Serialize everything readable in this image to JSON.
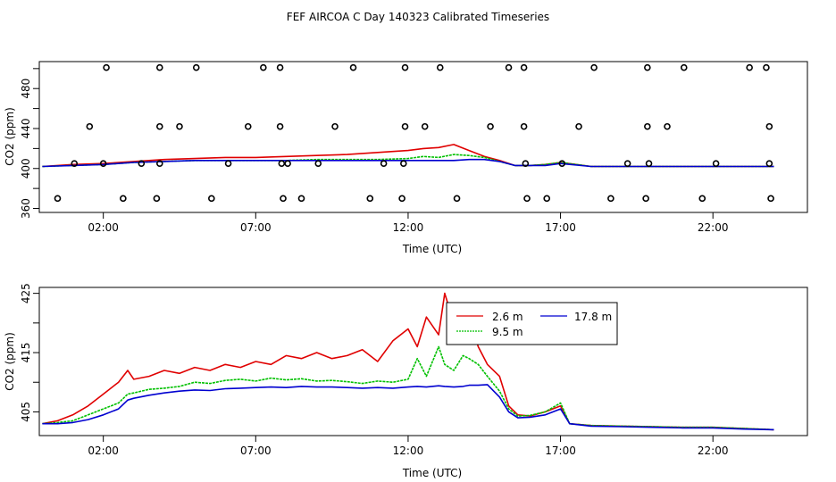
{
  "title": "FEF AIRCOA C  Day 140323  Calibrated Timeseries",
  "colors": {
    "s26": "#e00000",
    "s95": "#00c000",
    "s178": "#0000d0",
    "axis": "#000000"
  },
  "chart_data": [
    {
      "type": "line",
      "panel": "top",
      "xlabel": "Time (UTC)",
      "ylabel": "CO2 (ppm)",
      "xlim": [
        -0.1,
        25.1
      ],
      "ylim": [
        356,
        507
      ],
      "xticks": [
        2,
        7,
        12,
        17,
        22
      ],
      "xtick_labels": [
        "02:00",
        "07:00",
        "12:00",
        "17:00",
        "22:00"
      ],
      "yticks": [
        360,
        380,
        400,
        420,
        440,
        460,
        480,
        500
      ],
      "ytick_labels": [
        "360",
        "",
        "400",
        "",
        "440",
        "",
        "480",
        ""
      ],
      "series": [
        {
          "name": "2.6 m",
          "color": "#e00000",
          "x": [
            0,
            1,
            2,
            3,
            4,
            5,
            6,
            7,
            8,
            9,
            10,
            11,
            12,
            12.5,
            13,
            13.5,
            14,
            14.5,
            15,
            15.5,
            16,
            16.5,
            17,
            18,
            20,
            22,
            24
          ],
          "y": [
            402,
            404,
            405,
            407,
            409,
            410,
            411,
            411,
            412,
            413,
            414,
            416,
            418,
            420,
            421,
            424,
            418,
            412,
            408,
            403,
            403,
            404,
            406,
            402,
            402,
            402,
            402
          ]
        },
        {
          "name": "9.5 m",
          "color": "#00c000",
          "x": [
            0,
            1,
            2,
            3,
            4,
            5,
            6,
            7,
            8,
            9,
            10,
            11,
            12,
            12.5,
            13,
            13.5,
            14,
            14.5,
            15,
            15.5,
            16,
            16.5,
            17,
            18,
            20,
            22,
            24
          ],
          "y": [
            402,
            403,
            404,
            406,
            407,
            408,
            408,
            408,
            408,
            409,
            409,
            409,
            410,
            412,
            411,
            414,
            413,
            411,
            407,
            403,
            403,
            404,
            406,
            402,
            402,
            402,
            402
          ]
        },
        {
          "name": "17.8 m",
          "color": "#0000d0",
          "x": [
            0,
            1,
            2,
            3,
            4,
            5,
            6,
            7,
            8,
            9,
            10,
            11,
            12,
            12.5,
            13,
            13.5,
            14,
            14.5,
            15,
            15.5,
            16,
            16.5,
            17,
            18,
            20,
            22,
            24
          ],
          "y": [
            402,
            403,
            404,
            406,
            407,
            408,
            408,
            408,
            408,
            408,
            408,
            408,
            408,
            408,
            408,
            408,
            409,
            409,
            407,
            403,
            403,
            403,
            405,
            402,
            402,
            402,
            402
          ]
        }
      ],
      "markers": {
        "style": "open-circle",
        "levels": [
          370,
          405,
          442,
          501
        ],
        "x_at_501": [
          2.1,
          3.85,
          5.05,
          7.25,
          7.8,
          10.2,
          11.9,
          13.05,
          15.3,
          15.8,
          18.1,
          19.85,
          21.05,
          23.2,
          23.75
        ],
        "x_at_442": [
          1.55,
          3.85,
          4.5,
          6.75,
          7.8,
          9.6,
          11.9,
          12.55,
          14.7,
          15.8,
          17.6,
          19.85,
          20.5,
          23.85
        ],
        "x_at_405": [
          1.05,
          2.0,
          3.25,
          3.85,
          6.1,
          7.85,
          8.05,
          9.05,
          11.2,
          11.85,
          15.85,
          17.05,
          19.2,
          19.9,
          22.1,
          23.85
        ],
        "x_at_370": [
          0.5,
          2.65,
          3.75,
          5.55,
          7.9,
          8.5,
          10.75,
          11.8,
          13.6,
          15.9,
          16.55,
          18.65,
          19.8,
          21.65,
          23.9
        ]
      }
    },
    {
      "type": "line",
      "panel": "bottom",
      "xlabel": "Time (UTC)",
      "ylabel": "CO2 (ppm)",
      "xlim": [
        -0.1,
        25.1
      ],
      "ylim": [
        401,
        426
      ],
      "xticks": [
        2,
        7,
        12,
        17,
        22
      ],
      "xtick_labels": [
        "02:00",
        "07:00",
        "12:00",
        "17:00",
        "22:00"
      ],
      "yticks": [
        405,
        410,
        415,
        420,
        425
      ],
      "ytick_labels": [
        "405",
        "",
        "415",
        "",
        "425"
      ],
      "legend": {
        "placement": "top-center",
        "entries": [
          "2.6 m",
          "9.5 m",
          "17.8 m"
        ]
      },
      "series": [
        {
          "name": "2.6 m",
          "color": "#e00000",
          "x": [
            0,
            0.5,
            1,
            1.5,
            2,
            2.5,
            2.8,
            3,
            3.5,
            4,
            4.5,
            5,
            5.5,
            6,
            6.5,
            7,
            7.5,
            8,
            8.5,
            9,
            9.5,
            10,
            10.5,
            11,
            11.5,
            12,
            12.3,
            12.6,
            13,
            13.2,
            13.5,
            13.8,
            14,
            14.3,
            14.6,
            15,
            15.3,
            15.6,
            16,
            16.5,
            17,
            17.3,
            18,
            19,
            20,
            21,
            22,
            23,
            24
          ],
          "y": [
            403,
            403.5,
            404.5,
            406,
            408,
            410,
            412,
            410.5,
            411,
            412,
            411.5,
            412.5,
            412,
            413,
            412.5,
            413.5,
            413,
            414.5,
            414,
            415,
            414,
            414.5,
            415.5,
            413.5,
            417,
            419,
            416,
            421,
            418,
            425,
            420,
            417,
            421,
            416,
            413,
            411,
            406,
            404.5,
            404.3,
            405,
            406,
            403,
            402.7,
            402.6,
            402.5,
            402.4,
            402.4,
            402.2,
            402
          ]
        },
        {
          "name": "9.5 m",
          "color": "#00c000",
          "x": [
            0,
            0.5,
            1,
            1.5,
            2,
            2.5,
            2.8,
            3,
            3.5,
            4,
            4.5,
            5,
            5.5,
            6,
            6.5,
            7,
            7.5,
            8,
            8.5,
            9,
            9.5,
            10,
            10.5,
            11,
            11.5,
            12,
            12.3,
            12.6,
            13,
            13.2,
            13.5,
            13.8,
            14,
            14.3,
            14.6,
            15,
            15.3,
            15.6,
            16,
            16.5,
            17,
            17.3,
            18,
            19,
            20,
            21,
            22,
            23,
            24
          ],
          "y": [
            403,
            403.2,
            403.5,
            404.5,
            405.5,
            406.5,
            408,
            408.2,
            408.8,
            409,
            409.3,
            410,
            409.8,
            410.3,
            410.5,
            410.2,
            410.7,
            410.4,
            410.6,
            410.2,
            410.3,
            410.1,
            409.8,
            410.2,
            410,
            410.5,
            414,
            411,
            416,
            413,
            412,
            414.5,
            414,
            413,
            411,
            408.5,
            405.5,
            404.3,
            404.4,
            405,
            406.5,
            403,
            402.7,
            402.6,
            402.5,
            402.4,
            402.4,
            402.2,
            402
          ]
        },
        {
          "name": "17.8 m",
          "color": "#0000d0",
          "x": [
            0,
            0.5,
            1,
            1.5,
            2,
            2.5,
            2.8,
            3,
            3.5,
            4,
            4.5,
            5,
            5.5,
            6,
            6.5,
            7,
            7.5,
            8,
            8.5,
            9,
            9.5,
            10,
            10.5,
            11,
            11.5,
            12,
            12.3,
            12.6,
            13,
            13.2,
            13.5,
            13.8,
            14,
            14.3,
            14.6,
            15,
            15.3,
            15.6,
            16,
            16.5,
            17,
            17.3,
            18,
            19,
            20,
            21,
            22,
            23,
            24
          ],
          "y": [
            403,
            403,
            403.2,
            403.7,
            404.5,
            405.5,
            407,
            407.3,
            407.8,
            408.2,
            408.5,
            408.7,
            408.6,
            408.9,
            409,
            409.1,
            409.2,
            409.1,
            409.3,
            409.2,
            409.2,
            409.1,
            409,
            409.1,
            409,
            409.2,
            409.3,
            409.2,
            409.4,
            409.3,
            409.2,
            409.3,
            409.5,
            409.5,
            409.6,
            407.5,
            405,
            404,
            404.1,
            404.5,
            405.5,
            403,
            402.6,
            402.5,
            402.4,
            402.3,
            402.3,
            402.1,
            402
          ]
        }
      ]
    }
  ]
}
